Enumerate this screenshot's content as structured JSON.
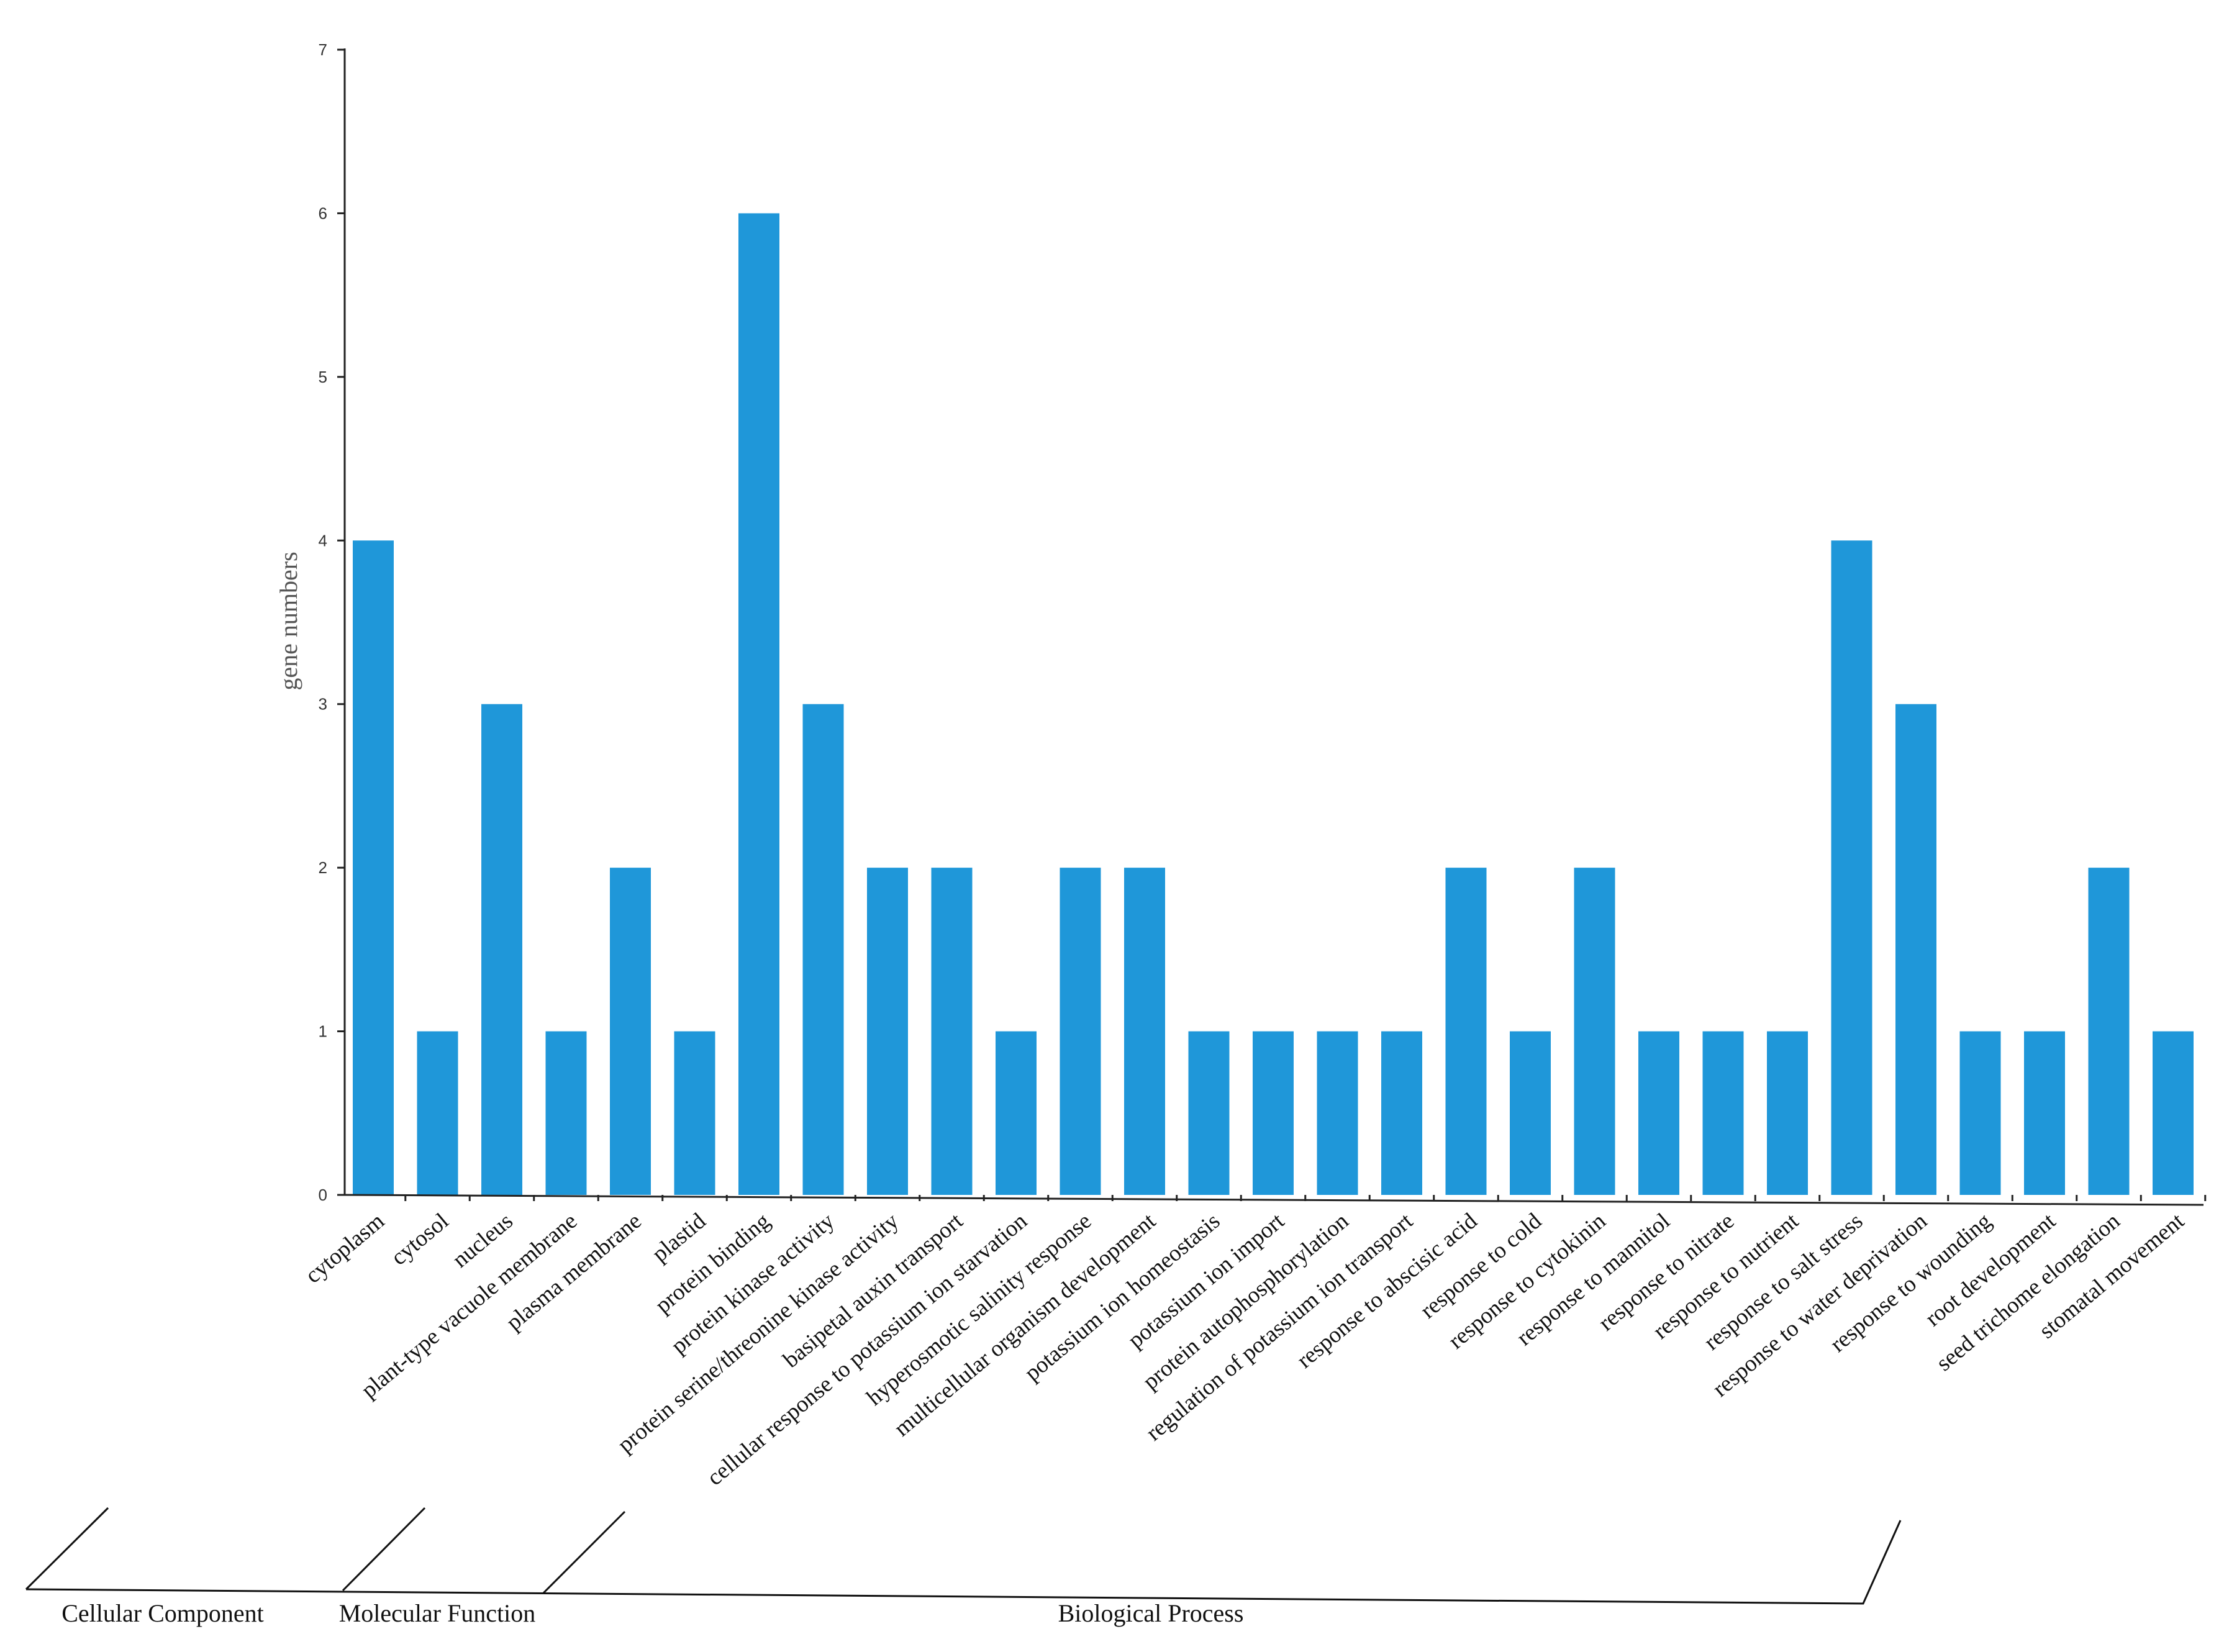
{
  "chart_data": {
    "type": "bar",
    "title": "",
    "xlabel": "",
    "ylabel": "gene  numbers",
    "ylim": [
      0,
      7
    ],
    "yticks": [
      0,
      1,
      2,
      3,
      4,
      5,
      6,
      7
    ],
    "grid": false,
    "bar_color": "#1f97d9",
    "categories": [
      "cytoplasm",
      "cytosol",
      "nucleus",
      "plant-type vacuole membrane",
      "plasma membrane",
      "plastid",
      "protein binding",
      "protein kinase activity",
      "protein serine/threonine kinase activity",
      "basipetal auxin transport",
      "cellular response to potassium ion starvation",
      "hyperosmotic salinity response",
      "multicellular organism development",
      "potassium ion homeostasis",
      "potassium ion import",
      "protein autophosphorylation",
      "regulation of potassium ion transport",
      "response to abscisic acid",
      "response to cold",
      "response to cytokinin",
      "response to mannitol",
      "response to nitrate",
      "response to nutrient",
      "response to salt stress",
      "response to water deprivation",
      "response to wounding",
      "root development",
      "seed trichome elongation",
      "stomatal movement"
    ],
    "values": [
      4,
      1,
      3,
      1,
      2,
      1,
      6,
      3,
      2,
      2,
      1,
      2,
      2,
      1,
      1,
      1,
      1,
      2,
      1,
      2,
      1,
      1,
      1,
      4,
      3,
      1,
      1,
      2,
      1
    ],
    "groups": [
      {
        "name": "Cellular Component",
        "start": 0,
        "end": 5
      },
      {
        "name": "Molecular Function",
        "start": 6,
        "end": 8
      },
      {
        "name": "Biological Process",
        "start": 9,
        "end": 28
      }
    ]
  }
}
